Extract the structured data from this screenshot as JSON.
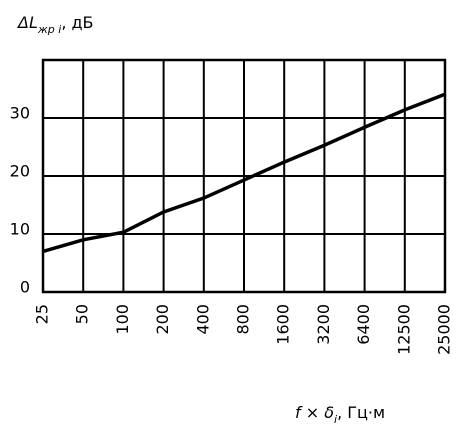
{
  "chart_data": {
    "type": "line",
    "ylabel": {
      "main": "ΔL",
      "sub": "жр i",
      "unit": ", дБ"
    },
    "xlabel": {
      "main": "f × δ",
      "sub": "i",
      "unit": ", Гц·м"
    },
    "categories": [
      "25",
      "50",
      "100",
      "200",
      "400",
      "800",
      "1600",
      "3200",
      "6400",
      "12500",
      "25000"
    ],
    "series": [
      {
        "color": "#000000",
        "values": [
          7,
          9,
          10.3,
          13.8,
          16.2,
          19.3,
          22.4,
          25.3,
          28.4,
          31.4,
          34.1
        ]
      }
    ],
    "ylim": [
      0,
      40
    ],
    "yticks": [
      0,
      10,
      20,
      30
    ],
    "grid": true
  }
}
